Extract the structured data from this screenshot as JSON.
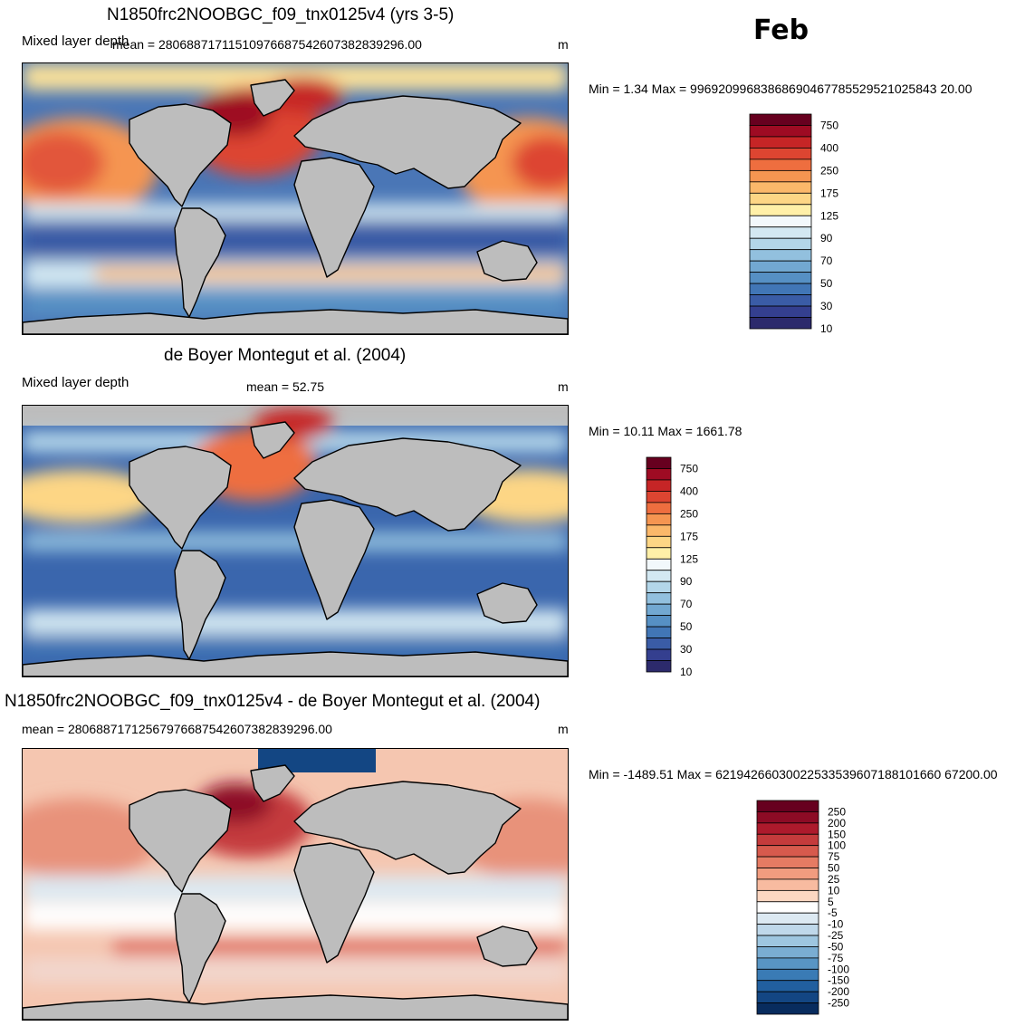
{
  "month": "Feb",
  "panels": [
    {
      "title": "N1850frc2NOOBGC_f09_tnx0125v4 (yrs 3-5)",
      "left_label": "Mixed layer depth",
      "mean_label": "mean = 28068871711510976687542607382839296.00",
      "units": "m",
      "minmax": "Min =   1.34 Max = 99692099683868690467785529521025843 20.00",
      "colorbar": {
        "labels": [
          "750",
          "400",
          "250",
          "175",
          "125",
          "90",
          "70",
          "50",
          "30",
          "10"
        ],
        "colors": [
          "#67001f",
          "#9e0b23",
          "#c62526",
          "#dd4531",
          "#ee6e3f",
          "#f59551",
          "#fbb86a",
          "#fdd685",
          "#fff0a8",
          "#f2f8fb",
          "#d3e8f2",
          "#b3d6e9",
          "#92c0de",
          "#72a8d1",
          "#5690c4",
          "#4176b6",
          "#3a5ca6",
          "#343f8f",
          "#2c2a6c"
        ],
        "labelled_boundaries": [
          1,
          3,
          5,
          7,
          9,
          11,
          13,
          15,
          17,
          19
        ]
      }
    },
    {
      "title": "de Boyer Montegut et al. (2004)",
      "left_label": "Mixed layer depth",
      "mean_label": "mean =  52.75",
      "units": "m",
      "minmax": "Min =  10.11 Max = 1661.78",
      "colorbar": {
        "labels": [
          "750",
          "400",
          "250",
          "175",
          "125",
          "90",
          "70",
          "50",
          "30",
          "10"
        ],
        "colors": [
          "#67001f",
          "#9e0b23",
          "#c62526",
          "#dd4531",
          "#ee6e3f",
          "#f59551",
          "#fbb86a",
          "#fdd685",
          "#fff0a8",
          "#f2f8fb",
          "#d3e8f2",
          "#b3d6e9",
          "#92c0de",
          "#72a8d1",
          "#5690c4",
          "#4176b6",
          "#3a5ca6",
          "#343f8f",
          "#2c2a6c"
        ],
        "labelled_boundaries": [
          1,
          3,
          5,
          7,
          9,
          11,
          13,
          15,
          17,
          19
        ]
      }
    },
    {
      "title": "N1850frc2NOOBGC_f09_tnx0125v4 - de Boyer Montegut et al. (2004)",
      "left_label": "mean = 28068871712567976687542607382839296.00",
      "mean_label": "",
      "units": "m",
      "minmax": "Min = -1489.51 Max = 62194266030022533539607188101660 67200.00",
      "colorbar": {
        "labels": [
          "250",
          "200",
          "150",
          "100",
          "75",
          "50",
          "25",
          "10",
          "5",
          "-5",
          "-10",
          "-25",
          "-50",
          "-75",
          "-100",
          "-150",
          "-200",
          "-250"
        ],
        "colors": [
          "#67001f",
          "#8d0b25",
          "#ad1a2c",
          "#c43b3c",
          "#d65a4d",
          "#e57b63",
          "#f19c7f",
          "#f8bba0",
          "#fcd7c2",
          "#ffffff",
          "#dce9f2",
          "#bfd8ea",
          "#9ec6e0",
          "#7aadd2",
          "#5895c4",
          "#3a7bb5",
          "#215f9f",
          "#134683",
          "#082c5e"
        ],
        "labelled_boundaries": [
          1,
          2,
          3,
          4,
          5,
          6,
          7,
          8,
          9,
          10,
          11,
          12,
          13,
          14,
          15,
          16,
          17,
          18
        ]
      }
    }
  ]
}
